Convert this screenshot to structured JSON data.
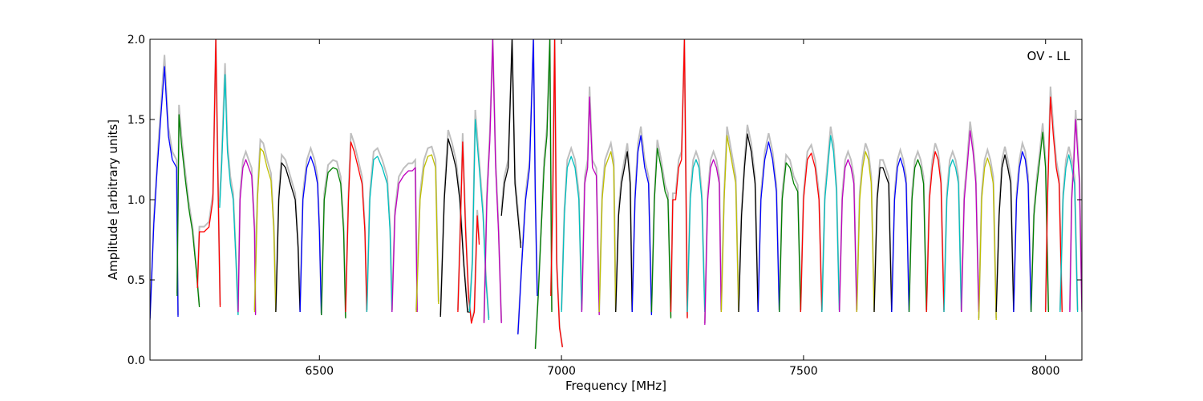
{
  "chart_data": {
    "type": "line",
    "title": "",
    "xlabel": "Frequency [MHz]",
    "ylabel": "Amplitude [arbitrary units]",
    "xlim": [
      6150,
      8075
    ],
    "ylim": [
      0.0,
      2.0
    ],
    "x_ticks": [
      6500,
      7000,
      7500,
      8000
    ],
    "y_ticks": [
      0.0,
      0.5,
      1.0,
      1.5,
      2.0
    ],
    "x_tick_labels": [
      "6500",
      "7000",
      "7500",
      "8000"
    ],
    "y_tick_labels": [
      "0.0",
      "0.5",
      "1.0",
      "1.5",
      "2.0"
    ],
    "annotation": "OV - LL",
    "grid": false,
    "background_series": {
      "color": "#bfbfbf"
    },
    "color_cycle": [
      "#0000ff",
      "#008000",
      "#ff0000",
      "#00bfbf",
      "#bf00bf",
      "#bfbf00",
      "#000000"
    ],
    "series": [
      {
        "color": "#0000ff",
        "x": [
          6150,
          6158,
          6165,
          6172,
          6180,
          6188,
          6196,
          6205,
          6208
        ],
        "y": [
          0.25,
          0.85,
          1.2,
          1.5,
          1.83,
          1.4,
          1.25,
          1.2,
          0.27
        ]
      },
      {
        "color": "#008000",
        "x": [
          6206,
          6210,
          6215,
          6222,
          6230,
          6238,
          6246,
          6252
        ],
        "y": [
          0.4,
          1.53,
          1.35,
          1.15,
          0.95,
          0.8,
          0.55,
          0.33
        ]
      },
      {
        "color": "#ff0000",
        "x": [
          6248,
          6252,
          6262,
          6272,
          6280,
          6286,
          6290,
          6295
        ],
        "y": [
          0.45,
          0.8,
          0.8,
          0.83,
          1.0,
          2.0,
          1.2,
          0.33
        ]
      },
      {
        "color": "#00bfbf",
        "x": [
          6294,
          6298,
          6305,
          6310,
          6316,
          6322,
          6328,
          6332
        ],
        "y": [
          0.95,
          1.2,
          1.78,
          1.3,
          1.1,
          1.0,
          0.6,
          0.28
        ]
      },
      {
        "color": "#bf00bf",
        "x": [
          6332,
          6336,
          6342,
          6348,
          6354,
          6360,
          6366,
          6368
        ],
        "y": [
          0.3,
          1.0,
          1.2,
          1.25,
          1.2,
          1.15,
          0.8,
          0.28
        ]
      },
      {
        "color": "#bfbf00",
        "x": [
          6366,
          6372,
          6378,
          6384,
          6392,
          6400,
          6406,
          6410
        ],
        "y": [
          0.3,
          1.0,
          1.32,
          1.3,
          1.2,
          1.12,
          0.8,
          0.3
        ]
      },
      {
        "color": "#000000",
        "x": [
          6410,
          6416,
          6422,
          6430,
          6440,
          6450,
          6456,
          6460
        ],
        "y": [
          0.3,
          1.0,
          1.23,
          1.2,
          1.1,
          1.0,
          0.7,
          0.3
        ]
      },
      {
        "color": "#0000ff",
        "x": [
          6460,
          6466,
          6474,
          6482,
          6490,
          6496,
          6500,
          6504
        ],
        "y": [
          0.3,
          1.0,
          1.2,
          1.27,
          1.2,
          1.1,
          0.8,
          0.28
        ]
      },
      {
        "color": "#008000",
        "x": [
          6504,
          6510,
          6518,
          6528,
          6536,
          6544,
          6550,
          6554
        ],
        "y": [
          0.28,
          1.0,
          1.17,
          1.2,
          1.19,
          1.1,
          0.8,
          0.26
        ]
      },
      {
        "color": "#ff0000",
        "x": [
          6554,
          6560,
          6565,
          6572,
          6580,
          6588,
          6594,
          6598
        ],
        "y": [
          0.3,
          1.0,
          1.36,
          1.3,
          1.2,
          1.1,
          0.8,
          0.3
        ]
      },
      {
        "color": "#00bfbf",
        "x": [
          6598,
          6604,
          6612,
          6620,
          6630,
          6640,
          6646,
          6650
        ],
        "y": [
          0.3,
          1.0,
          1.25,
          1.27,
          1.2,
          1.1,
          0.8,
          0.3
        ]
      },
      {
        "color": "#bf00bf",
        "x": [
          6650,
          6656,
          6664,
          6674,
          6684,
          6692,
          6698,
          6702
        ],
        "y": [
          0.3,
          0.9,
          1.1,
          1.15,
          1.18,
          1.18,
          1.2,
          0.3
        ]
      },
      {
        "color": "#bfbf00",
        "x": [
          6700,
          6708,
          6716,
          6724,
          6732,
          6740,
          6746
        ],
        "y": [
          0.3,
          1.0,
          1.2,
          1.27,
          1.28,
          1.2,
          0.35
        ]
      },
      {
        "color": "#000000",
        "x": [
          6750,
          6758,
          6766,
          6774,
          6782,
          6790,
          6798,
          6806,
          6812
        ],
        "y": [
          0.27,
          1.0,
          1.38,
          1.3,
          1.2,
          1.0,
          0.6,
          0.3,
          0.3
        ]
      },
      {
        "color": "#ff0000",
        "x": [
          6786,
          6790,
          6796,
          6802,
          6808,
          6814,
          6820,
          6826,
          6830
        ],
        "y": [
          0.3,
          0.7,
          1.36,
          0.8,
          0.4,
          0.23,
          0.3,
          0.9,
          0.72
        ]
      },
      {
        "color": "#00bfbf",
        "x": [
          6810,
          6816,
          6822,
          6830,
          6838,
          6844,
          6850
        ],
        "y": [
          0.3,
          0.6,
          1.5,
          1.2,
          0.9,
          0.5,
          0.25
        ]
      },
      {
        "color": "#bf00bf",
        "x": [
          6840,
          6846,
          6852,
          6858,
          6864,
          6870,
          6876
        ],
        "y": [
          0.23,
          1.0,
          1.37,
          2.0,
          1.2,
          0.8,
          0.23
        ]
      },
      {
        "color": "#000000",
        "x": [
          6876,
          6882,
          6890,
          6898,
          6904,
          6910,
          6916
        ],
        "y": [
          0.9,
          1.1,
          1.2,
          2.0,
          1.1,
          0.9,
          0.7
        ]
      },
      {
        "color": "#0000ff",
        "x": [
          6910,
          6918,
          6926,
          6934,
          6942,
          6946,
          6950
        ],
        "y": [
          0.16,
          0.6,
          1.0,
          1.2,
          2.0,
          1.0,
          0.4
        ]
      },
      {
        "color": "#008000",
        "x": [
          6946,
          6952,
          6958,
          6964,
          6970,
          6976,
          6980
        ],
        "y": [
          0.07,
          0.4,
          0.8,
          1.2,
          1.4,
          2.0,
          0.3
        ]
      },
      {
        "color": "#ff0000",
        "x": [
          6978,
          6982,
          6986,
          6990,
          6996,
          7002
        ],
        "y": [
          0.4,
          1.0,
          2.0,
          0.6,
          0.2,
          0.08
        ]
      },
      {
        "color": "#00bfbf",
        "x": [
          7000,
          7006,
          7012,
          7020,
          7028,
          7036,
          7042
        ],
        "y": [
          0.3,
          0.9,
          1.2,
          1.27,
          1.2,
          1.0,
          0.3
        ]
      },
      {
        "color": "#bf00bf",
        "x": [
          7042,
          7048,
          7054,
          7058,
          7064,
          7072,
          7078
        ],
        "y": [
          0.3,
          1.1,
          1.2,
          1.64,
          1.2,
          1.15,
          0.28
        ]
      },
      {
        "color": "#bfbf00",
        "x": [
          7078,
          7084,
          7090,
          7096,
          7102,
          7108,
          7112
        ],
        "y": [
          0.3,
          1.0,
          1.2,
          1.25,
          1.3,
          1.2,
          0.3
        ]
      },
      {
        "color": "#000000",
        "x": [
          7112,
          7118,
          7124,
          7130,
          7136,
          7142,
          7146
        ],
        "y": [
          0.3,
          0.9,
          1.1,
          1.2,
          1.3,
          1.1,
          0.3
        ]
      },
      {
        "color": "#0000ff",
        "x": [
          7146,
          7152,
          7158,
          7164,
          7172,
          7180,
          7186
        ],
        "y": [
          0.3,
          1.0,
          1.3,
          1.4,
          1.2,
          1.1,
          0.28
        ]
      },
      {
        "color": "#008000",
        "x": [
          7186,
          7192,
          7198,
          7206,
          7214,
          7220,
          7226
        ],
        "y": [
          0.3,
          1.0,
          1.32,
          1.2,
          1.05,
          1.0,
          0.26
        ]
      },
      {
        "color": "#ff0000",
        "x": [
          7226,
          7230,
          7236,
          7242,
          7248,
          7254,
          7260
        ],
        "y": [
          0.3,
          1.0,
          1.0,
          1.2,
          1.25,
          2.0,
          0.26
        ]
      },
      {
        "color": "#00bfbf",
        "x": [
          7260,
          7266,
          7272,
          7278,
          7284,
          7290,
          7296
        ],
        "y": [
          0.3,
          1.0,
          1.2,
          1.25,
          1.2,
          1.0,
          0.3
        ]
      },
      {
        "color": "#bf00bf",
        "x": [
          7296,
          7302,
          7308,
          7314,
          7320,
          7326,
          7330
        ],
        "y": [
          0.22,
          1.0,
          1.2,
          1.25,
          1.2,
          1.1,
          0.3
        ]
      },
      {
        "color": "#bfbf00",
        "x": [
          7330,
          7336,
          7342,
          7348,
          7354,
          7360,
          7366
        ],
        "y": [
          0.3,
          1.0,
          1.4,
          1.3,
          1.2,
          1.1,
          0.3
        ]
      },
      {
        "color": "#000000",
        "x": [
          7366,
          7372,
          7378,
          7384,
          7392,
          7400,
          7406
        ],
        "y": [
          0.3,
          0.9,
          1.2,
          1.41,
          1.3,
          1.1,
          0.3
        ]
      },
      {
        "color": "#0000ff",
        "x": [
          7406,
          7412,
          7420,
          7428,
          7436,
          7444,
          7450
        ],
        "y": [
          0.3,
          1.0,
          1.25,
          1.36,
          1.25,
          1.05,
          0.3
        ]
      },
      {
        "color": "#008000",
        "x": [
          7450,
          7456,
          7464,
          7472,
          7480,
          7488,
          7494
        ],
        "y": [
          0.3,
          1.0,
          1.23,
          1.2,
          1.1,
          1.05,
          0.3
        ]
      },
      {
        "color": "#ff0000",
        "x": [
          7494,
          7500,
          7508,
          7516,
          7524,
          7532,
          7538
        ],
        "y": [
          0.3,
          1.0,
          1.25,
          1.29,
          1.2,
          1.0,
          0.3
        ]
      },
      {
        "color": "#00bfbf",
        "x": [
          7538,
          7544,
          7550,
          7556,
          7562,
          7568,
          7574
        ],
        "y": [
          0.3,
          1.0,
          1.2,
          1.4,
          1.3,
          1.05,
          0.3
        ]
      },
      {
        "color": "#bf00bf",
        "x": [
          7574,
          7580,
          7586,
          7592,
          7598,
          7604,
          7610
        ],
        "y": [
          0.3,
          1.0,
          1.2,
          1.25,
          1.2,
          1.1,
          0.3
        ]
      },
      {
        "color": "#bfbf00",
        "x": [
          7610,
          7616,
          7622,
          7628,
          7634,
          7640,
          7646
        ],
        "y": [
          0.3,
          1.0,
          1.2,
          1.3,
          1.25,
          1.1,
          0.3
        ]
      },
      {
        "color": "#000000",
        "x": [
          7646,
          7652,
          7658,
          7664,
          7670,
          7676,
          7682
        ],
        "y": [
          0.3,
          1.0,
          1.2,
          1.2,
          1.15,
          1.1,
          0.3
        ]
      },
      {
        "color": "#0000ff",
        "x": [
          7682,
          7688,
          7694,
          7700,
          7706,
          7712,
          7718
        ],
        "y": [
          0.3,
          1.0,
          1.2,
          1.26,
          1.2,
          1.1,
          0.3
        ]
      },
      {
        "color": "#008000",
        "x": [
          7718,
          7724,
          7730,
          7736,
          7742,
          7748,
          7754
        ],
        "y": [
          0.3,
          1.0,
          1.2,
          1.25,
          1.2,
          1.1,
          0.3
        ]
      },
      {
        "color": "#ff0000",
        "x": [
          7754,
          7760,
          7766,
          7772,
          7778,
          7784,
          7790
        ],
        "y": [
          0.3,
          1.0,
          1.2,
          1.3,
          1.25,
          1.1,
          0.3
        ]
      },
      {
        "color": "#00bfbf",
        "x": [
          7790,
          7796,
          7802,
          7808,
          7814,
          7820,
          7826
        ],
        "y": [
          0.3,
          1.0,
          1.2,
          1.25,
          1.2,
          1.1,
          0.3
        ]
      },
      {
        "color": "#bf00bf",
        "x": [
          7826,
          7832,
          7838,
          7844,
          7850,
          7856,
          7862
        ],
        "y": [
          0.3,
          1.0,
          1.2,
          1.43,
          1.3,
          1.1,
          0.3
        ]
      },
      {
        "color": "#bfbf00",
        "x": [
          7862,
          7868,
          7874,
          7880,
          7886,
          7892,
          7898
        ],
        "y": [
          0.25,
          1.0,
          1.2,
          1.26,
          1.2,
          1.1,
          0.25
        ]
      },
      {
        "color": "#000000",
        "x": [
          7898,
          7904,
          7910,
          7916,
          7922,
          7928,
          7934
        ],
        "y": [
          0.3,
          0.9,
          1.2,
          1.28,
          1.2,
          1.1,
          0.3
        ]
      },
      {
        "color": "#0000ff",
        "x": [
          7934,
          7940,
          7946,
          7952,
          7958,
          7964,
          7970
        ],
        "y": [
          0.3,
          1.0,
          1.2,
          1.3,
          1.25,
          1.1,
          0.3
        ]
      },
      {
        "color": "#008000",
        "x": [
          7970,
          7976,
          7982,
          7988,
          7994,
          8000,
          8006
        ],
        "y": [
          0.3,
          0.9,
          1.1,
          1.25,
          1.42,
          1.2,
          0.3
        ]
      },
      {
        "color": "#ff0000",
        "x": [
          8000,
          8004,
          8010,
          8016,
          8022,
          8028,
          8034
        ],
        "y": [
          0.3,
          1.0,
          1.64,
          1.4,
          1.2,
          1.1,
          0.3
        ]
      },
      {
        "color": "#00bfbf",
        "x": [
          8030,
          8036,
          8042,
          8048,
          8054,
          8060,
          8066
        ],
        "y": [
          0.3,
          1.0,
          1.2,
          1.28,
          1.2,
          1.1,
          0.3
        ]
      },
      {
        "color": "#bf00bf",
        "x": [
          8050,
          8054,
          8058,
          8062,
          8066,
          8070,
          8075
        ],
        "y": [
          0.3,
          1.0,
          1.2,
          1.5,
          1.3,
          1.1,
          0.3
        ]
      }
    ]
  }
}
